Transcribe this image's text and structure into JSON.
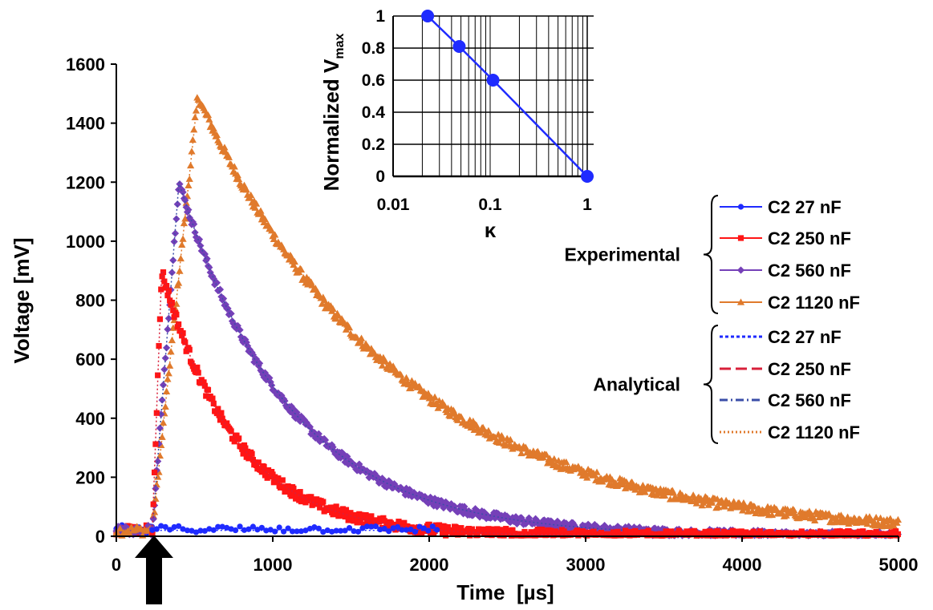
{
  "chart_data": [
    {
      "type": "scatter",
      "xlabel": "Time  [µs]",
      "ylabel": "Voltage [mV]",
      "xlim": [
        0,
        5000
      ],
      "ylim": [
        0,
        1600
      ],
      "xticks": [
        "0",
        "1000",
        "2000",
        "3000",
        "4000",
        "5000"
      ],
      "yticks": [
        "0",
        "200",
        "400",
        "600",
        "800",
        "1000",
        "1200",
        "1400",
        "1600"
      ],
      "trigger_marker": "upward black arrow at t ≈ 200 µs",
      "legend_groups": [
        {
          "label": "Experimental",
          "entries": [
            "C2 27 nF",
            "C2 250 nF",
            "C2 560 nF",
            "C2 1120 nF"
          ]
        },
        {
          "label": "Analytical",
          "entries": [
            "C2 27 nF",
            "C2 250 nF",
            "C2 560 nF",
            "C2 1120 nF"
          ]
        }
      ],
      "series": [
        {
          "legend": "C2 27 nF",
          "color": "#1f2bff",
          "marker": "circle",
          "t_start": 230,
          "peak_time": 240,
          "peak": 20,
          "decay_tau": 10000,
          "t_end": 2050,
          "noise": 14
        },
        {
          "legend": "C2 250 nF",
          "color": "#ff1515",
          "marker": "square",
          "t_start": 230,
          "peak_time": 290,
          "peak": 900,
          "decay_tau": 470,
          "t_end": 5000,
          "noise": 18
        },
        {
          "legend": "C2 560 nF",
          "color": "#7540b8",
          "marker": "diamond",
          "t_start": 230,
          "peak_time": 400,
          "peak": 1200,
          "decay_tau": 700,
          "t_end": 5000,
          "noise": 14
        },
        {
          "legend": "C2 1120 nF",
          "color": "#e07a2c",
          "marker": "triangle",
          "t_start": 230,
          "peak_time": 520,
          "peak": 1490,
          "decay_tau": 1280,
          "t_end": 5000,
          "noise": 16
        }
      ],
      "analytical_styles": [
        {
          "legend": "C2 27 nF",
          "color": "#1f2bff",
          "dash": "short-dash"
        },
        {
          "legend": "C2 250 nF",
          "color": "#d8203a",
          "dash": "long-dash"
        },
        {
          "legend": "C2 560 nF",
          "color": "#3a4ea8",
          "dash": "dash-dot"
        },
        {
          "legend": "C2 1120 nF",
          "color": "#e07a2c",
          "dash": "dotted"
        }
      ],
      "baseline": {
        "range": [
          0,
          230
        ],
        "mean": 20,
        "noise": 18
      }
    },
    {
      "type": "line",
      "xlabel": "κ",
      "ylabel": "Normalized V",
      "ylabel_sub": "max",
      "xscale": "log",
      "xlim": [
        0.01,
        1
      ],
      "ylim": [
        0,
        1
      ],
      "xticks": [
        "0.01",
        "0.1",
        "1"
      ],
      "yticks": [
        "0",
        "0.2",
        "0.4",
        "0.6",
        "0.8",
        "1"
      ],
      "grid": true,
      "color": "#1f2bff",
      "points": [
        {
          "x": 0.0227,
          "y": 1.0
        },
        {
          "x": 0.048,
          "y": 0.81
        },
        {
          "x": 0.107,
          "y": 0.6
        },
        {
          "x": 1.0,
          "y": 0.0
        }
      ]
    }
  ]
}
